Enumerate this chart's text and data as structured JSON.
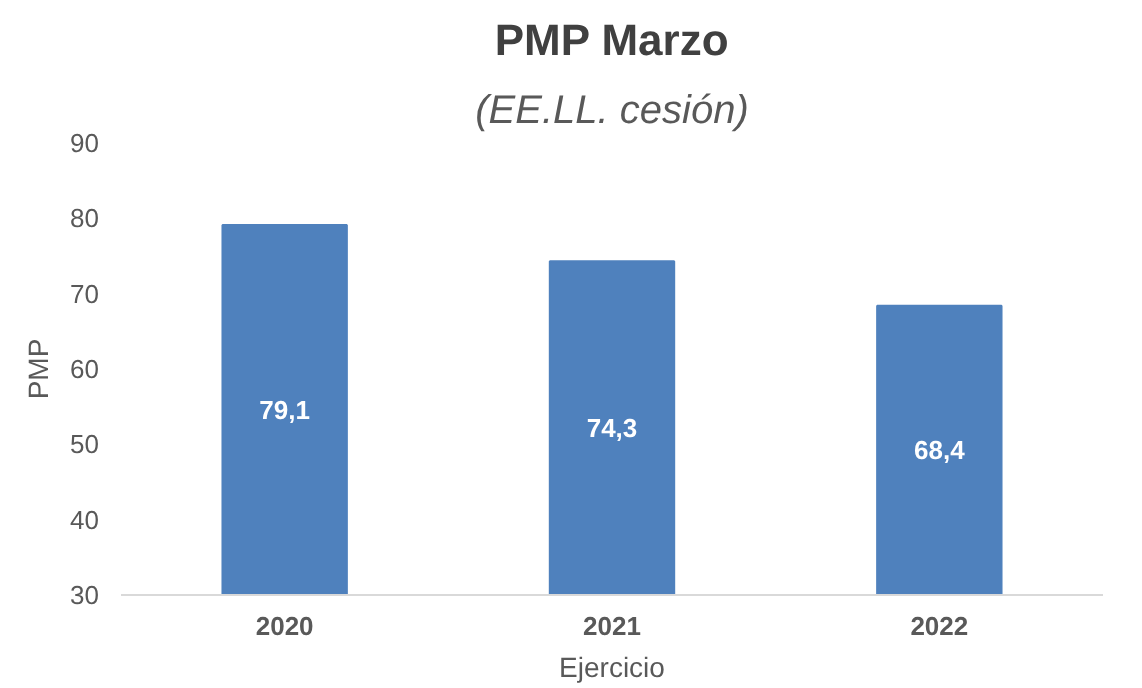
{
  "chart_data": {
    "type": "bar",
    "title": "PMP Marzo",
    "subtitle": "(EE.LL. cesión)",
    "xlabel": "Ejercicio",
    "ylabel": "PMP",
    "categories": [
      "2020",
      "2021",
      "2022"
    ],
    "values": [
      79.1,
      74.3,
      68.4
    ],
    "value_labels": [
      "79,1",
      "74,3",
      "68,4"
    ],
    "color": "#4f81bd",
    "ylim": [
      30,
      90
    ],
    "yticks": [
      30,
      40,
      50,
      60,
      70,
      80,
      90
    ],
    "grid": false
  }
}
